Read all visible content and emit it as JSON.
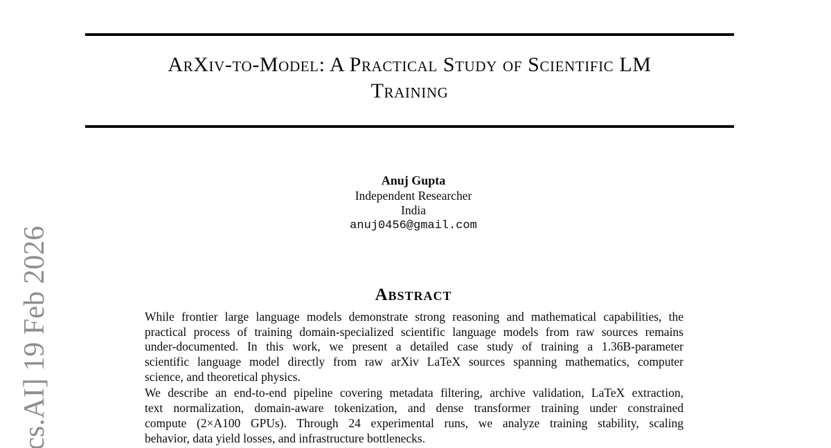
{
  "watermark": {
    "text": "cs.AI] 19 Feb 2026",
    "color": "#8e8e8e"
  },
  "title": {
    "line1": "ArXiv-to-Model: A Practical Study of Scientific LM",
    "line2": "Training"
  },
  "author": {
    "name": "Anuj Gupta",
    "affiliation": "Independent Researcher",
    "country": "India",
    "email": "anuj0456@gmail.com"
  },
  "abstract": {
    "heading": "Abstract",
    "paragraphs": [
      {
        "lines": [
          "While frontier large language models demonstrate strong reasoning and mathematical capabilities, the",
          "practical process of training domain-specialized scientific language models from raw sources remains",
          "under-documented.  In this work, we present a detailed case study of training a 1.36B-parameter",
          "scientific language model directly from raw arXiv LaTeX sources spanning mathematics, computer",
          "science, and theoretical physics."
        ]
      },
      {
        "lines": [
          "We describe an end-to-end pipeline covering metadata filtering, archive validation, LaTeX extraction,",
          "text normalization, domain-aware tokenization, and dense transformer training under constrained",
          "compute (2×A100 GPUs).  Through 24 experimental runs, we analyze training stability, scaling",
          "behavior, data yield losses, and infrastructure bottlenecks."
        ]
      }
    ]
  },
  "colors": {
    "text": "#0a0a0a",
    "rule": "#0a0a0a",
    "background": "#ffffff"
  }
}
